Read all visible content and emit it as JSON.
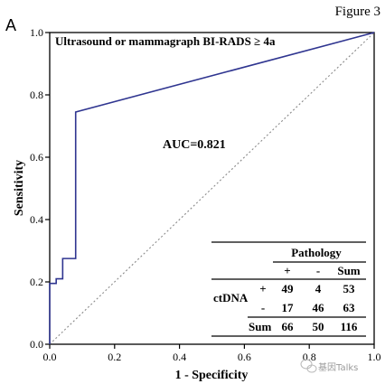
{
  "figure_label": "Figure 3",
  "panel_label": "A",
  "watermark_text": "基因Talks",
  "chart_data": {
    "type": "line",
    "title": "Ultrasound or mammagraph BI-RADS ≥ 4a",
    "xlabel": "1 - Specificity",
    "ylabel": "Sensitivity",
    "xlim": [
      0.0,
      1.0
    ],
    "ylim": [
      0.0,
      1.0
    ],
    "x_ticks": [
      "0.0",
      "0.2",
      "0.4",
      "0.6",
      "0.8",
      "1.0"
    ],
    "y_ticks": [
      "0.0",
      "0.2",
      "0.4",
      "0.6",
      "0.8",
      "1.0"
    ],
    "grid": false,
    "annotation": "AUC=0.821",
    "series": [
      {
        "color": "#2f3590",
        "style": "solid",
        "x": [
          0.0,
          0.0,
          0.02,
          0.02,
          0.04,
          0.04,
          0.08,
          0.08,
          1.0
        ],
        "y": [
          0.0,
          0.195,
          0.195,
          0.21,
          0.21,
          0.275,
          0.275,
          0.745,
          1.0
        ]
      },
      {
        "color": "#8a8a8a",
        "style": "dotted",
        "x": [
          0.0,
          1.0
        ],
        "y": [
          0.0,
          1.0
        ]
      }
    ],
    "table": {
      "title": "Pathology",
      "row_header": "ctDNA",
      "col_labels": [
        "+",
        "-",
        "Sum"
      ],
      "rows": [
        {
          "label": "+",
          "values": [
            "49",
            "4",
            "53"
          ]
        },
        {
          "label": "-",
          "values": [
            "17",
            "46",
            "63"
          ]
        },
        {
          "label": "Sum",
          "values": [
            "66",
            "50",
            "116"
          ]
        }
      ]
    }
  }
}
